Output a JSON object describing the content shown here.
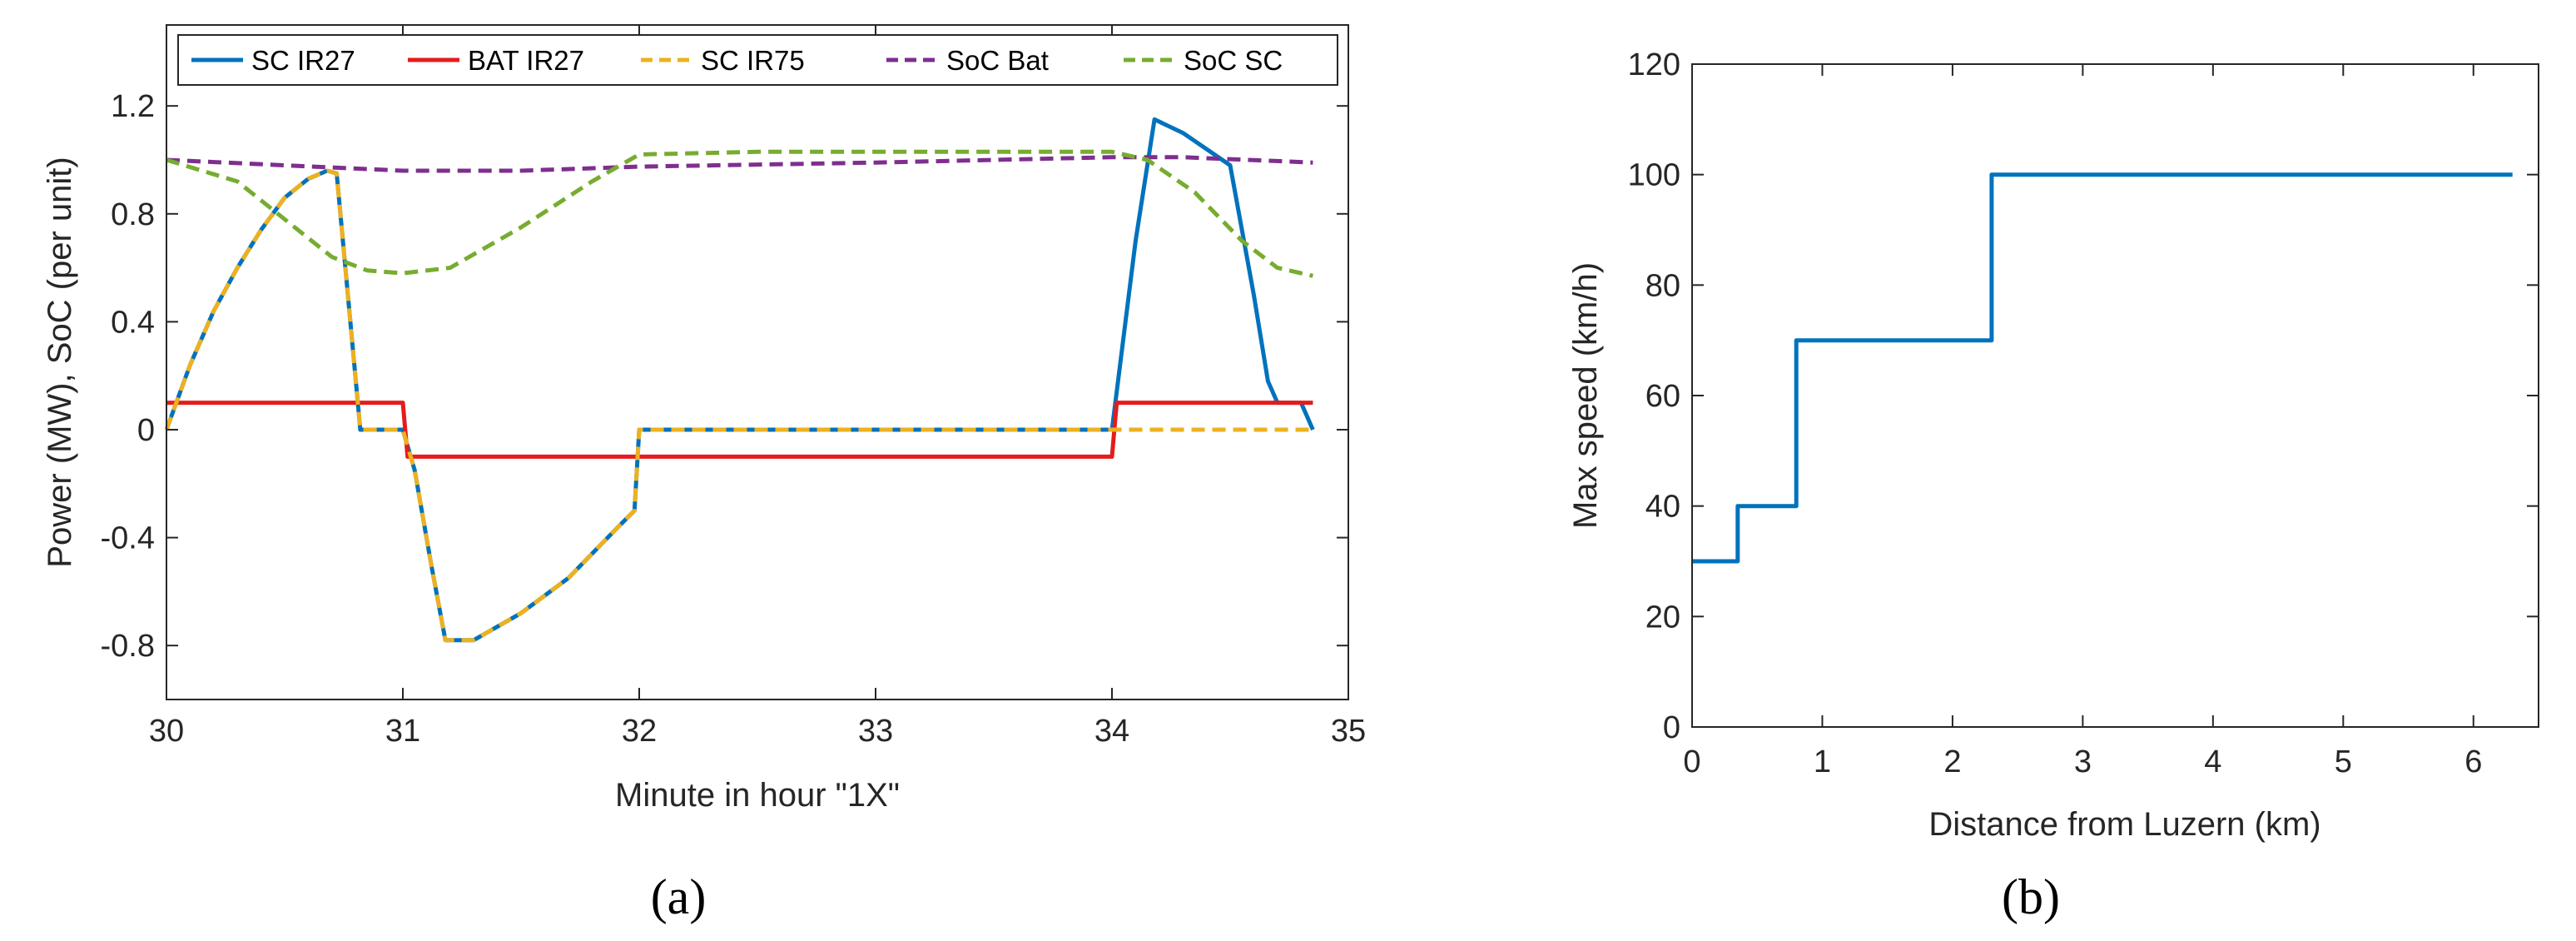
{
  "figure": {
    "panel_a_label": "(a)",
    "panel_b_label": "(b)"
  },
  "chart_data": [
    {
      "type": "line",
      "id": "a",
      "xlabel": "Minute in hour \"1X\"",
      "ylabel": "Power (MW), SoC (per unit)",
      "xlim": [
        30,
        35
      ],
      "ylim": [
        -1.0,
        1.5
      ],
      "xticks": [
        30,
        31,
        32,
        33,
        34,
        35
      ],
      "xtick_labels": [
        "30",
        "31",
        "32",
        "33",
        "34",
        "35"
      ],
      "yticks": [
        -0.8,
        -0.4,
        0,
        0.4,
        0.8,
        1.2
      ],
      "ytick_labels": [
        "-0.8",
        "-0.4",
        "0",
        "0.4",
        "0.8",
        "1.2"
      ],
      "grid": false,
      "legend_position": "top",
      "series": [
        {
          "name": "SC IR27",
          "color": "#0072BD",
          "dash": "solid",
          "points": [
            [
              30,
              0
            ],
            [
              30.1,
              0.24
            ],
            [
              30.2,
              0.44
            ],
            [
              30.3,
              0.6
            ],
            [
              30.4,
              0.74
            ],
            [
              30.5,
              0.86
            ],
            [
              30.6,
              0.93
            ],
            [
              30.68,
              0.96
            ],
            [
              30.72,
              0.95
            ],
            [
              30.82,
              0
            ],
            [
              31.0,
              0
            ],
            [
              31.05,
              -0.15
            ],
            [
              31.12,
              -0.5
            ],
            [
              31.18,
              -0.78
            ],
            [
              31.3,
              -0.78
            ],
            [
              31.5,
              -0.68
            ],
            [
              31.7,
              -0.55
            ],
            [
              31.9,
              -0.37
            ],
            [
              31.98,
              -0.3
            ],
            [
              32.0,
              0
            ],
            [
              34.0,
              0
            ],
            [
              34.1,
              0.7
            ],
            [
              34.18,
              1.15
            ],
            [
              34.3,
              1.1
            ],
            [
              34.5,
              0.98
            ],
            [
              34.6,
              0.5
            ],
            [
              34.66,
              0.18
            ],
            [
              34.7,
              0.1
            ],
            [
              34.8,
              0.1
            ],
            [
              34.85,
              0
            ]
          ]
        },
        {
          "name": "BAT IR27",
          "color": "#E61B1B",
          "dash": "solid",
          "points": [
            [
              30,
              0.1
            ],
            [
              31.0,
              0.1
            ],
            [
              31.02,
              -0.1
            ],
            [
              34.0,
              -0.1
            ],
            [
              34.02,
              0.1
            ],
            [
              34.85,
              0.1
            ]
          ]
        },
        {
          "name": "SC IR75",
          "color": "#EDB120",
          "dash": "dashed",
          "points": [
            [
              30,
              0
            ],
            [
              30.1,
              0.24
            ],
            [
              30.2,
              0.44
            ],
            [
              30.3,
              0.6
            ],
            [
              30.4,
              0.74
            ],
            [
              30.5,
              0.86
            ],
            [
              30.6,
              0.93
            ],
            [
              30.68,
              0.96
            ],
            [
              30.72,
              0.95
            ],
            [
              30.82,
              0
            ],
            [
              31.0,
              0
            ],
            [
              31.05,
              -0.15
            ],
            [
              31.12,
              -0.5
            ],
            [
              31.18,
              -0.78
            ],
            [
              31.3,
              -0.78
            ],
            [
              31.5,
              -0.68
            ],
            [
              31.7,
              -0.55
            ],
            [
              31.9,
              -0.37
            ],
            [
              31.98,
              -0.3
            ],
            [
              32.0,
              0
            ],
            [
              34.85,
              0
            ]
          ]
        },
        {
          "name": "SoC Bat",
          "color": "#7E2F8E",
          "dash": "dashed",
          "points": [
            [
              30,
              1.0
            ],
            [
              30.5,
              0.98
            ],
            [
              31.0,
              0.96
            ],
            [
              31.5,
              0.96
            ],
            [
              32.0,
              0.975
            ],
            [
              33.0,
              0.99
            ],
            [
              34.0,
              1.01
            ],
            [
              34.3,
              1.01
            ],
            [
              34.85,
              0.99
            ]
          ]
        },
        {
          "name": "SoC SC",
          "color": "#77AC30",
          "dash": "dashed",
          "points": [
            [
              30,
              1.0
            ],
            [
              30.3,
              0.92
            ],
            [
              30.5,
              0.78
            ],
            [
              30.7,
              0.64
            ],
            [
              30.85,
              0.59
            ],
            [
              31.0,
              0.58
            ],
            [
              31.2,
              0.6
            ],
            [
              31.5,
              0.75
            ],
            [
              31.8,
              0.92
            ],
            [
              32.0,
              1.02
            ],
            [
              32.5,
              1.03
            ],
            [
              33.0,
              1.03
            ],
            [
              33.5,
              1.03
            ],
            [
              34.0,
              1.03
            ],
            [
              34.15,
              1.0
            ],
            [
              34.35,
              0.88
            ],
            [
              34.55,
              0.7
            ],
            [
              34.7,
              0.6
            ],
            [
              34.85,
              0.57
            ]
          ]
        }
      ]
    },
    {
      "type": "line",
      "id": "b",
      "xlabel": "Distance from Luzern (km)",
      "ylabel": "Max speed (km/h)",
      "xlim": [
        0,
        6.5
      ],
      "ylim": [
        0,
        120
      ],
      "xticks": [
        0,
        1,
        2,
        3,
        4,
        5,
        6
      ],
      "xtick_labels": [
        "0",
        "1",
        "2",
        "3",
        "4",
        "5",
        "6"
      ],
      "yticks": [
        0,
        20,
        40,
        60,
        80,
        100,
        120
      ],
      "ytick_labels": [
        "0",
        "20",
        "40",
        "60",
        "80",
        "100",
        "120"
      ],
      "grid": false,
      "series": [
        {
          "name": "Max speed",
          "color": "#0072BD",
          "dash": "solid",
          "points": [
            [
              0,
              30
            ],
            [
              0.35,
              30
            ],
            [
              0.35,
              40
            ],
            [
              0.8,
              40
            ],
            [
              0.8,
              70
            ],
            [
              2.3,
              70
            ],
            [
              2.3,
              100
            ],
            [
              6.3,
              100
            ]
          ]
        }
      ]
    }
  ]
}
